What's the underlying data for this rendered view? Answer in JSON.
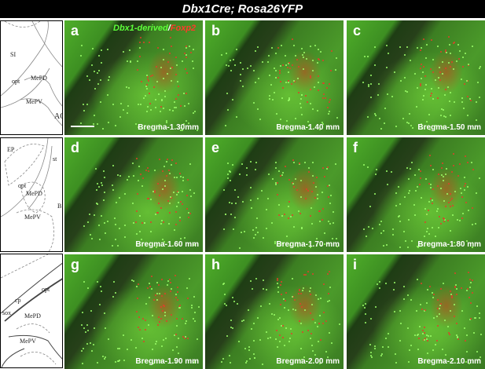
{
  "title": "Dbx1Cre; Rosa26YFP",
  "legend": {
    "green": "Dbx1-derived",
    "separator": "/",
    "red": "Foxp2"
  },
  "atlas": [
    {
      "labels": [
        "SI",
        "opt",
        "MePD",
        "MePV",
        "AC"
      ]
    },
    {
      "labels": [
        "EP",
        "st",
        "opt",
        "MePD",
        "MePV",
        "B"
      ]
    },
    {
      "labels": [
        "cp",
        "opt",
        "sox",
        "MePD",
        "MePV"
      ]
    }
  ],
  "panels": [
    {
      "letter": "a",
      "bregma": "Bregma-1.30mm"
    },
    {
      "letter": "b",
      "bregma": "Bregma-1.40 mm"
    },
    {
      "letter": "c",
      "bregma": "Bregma-1.50 mm"
    },
    {
      "letter": "d",
      "bregma": "Bregma-1.60 mm"
    },
    {
      "letter": "e",
      "bregma": "Bregma-1.70 mm"
    },
    {
      "letter": "f",
      "bregma": "Bregma-1.80 mm"
    },
    {
      "letter": "g",
      "bregma": "Bregma-1.90 mm"
    },
    {
      "letter": "h",
      "bregma": "Bregma-2.00 mm"
    },
    {
      "letter": "i",
      "bregma": "Bregma-2.10 mm"
    }
  ]
}
